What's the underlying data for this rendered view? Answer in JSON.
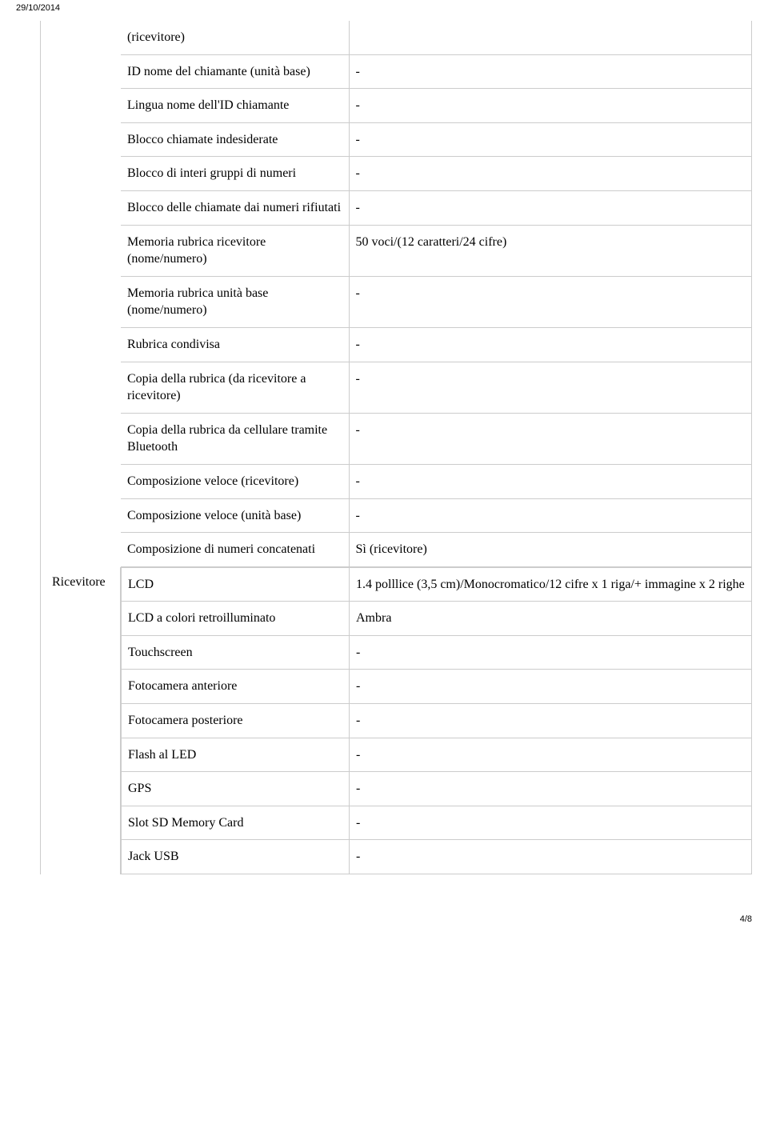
{
  "header": {
    "date": "29/10/2014"
  },
  "section1": {
    "continuation": "(ricevitore)",
    "rows": [
      {
        "label": "ID nome del chiamante (unità base)",
        "value": "-"
      },
      {
        "label": "Lingua nome dell'ID chiamante",
        "value": "-"
      },
      {
        "label": "Blocco chiamate indesiderate",
        "value": "-"
      },
      {
        "label": "Blocco di interi gruppi di numeri",
        "value": "-"
      },
      {
        "label": "Blocco delle chiamate dai numeri rifiutati",
        "value": "-"
      },
      {
        "label": "Memoria rubrica ricevitore (nome/numero)",
        "value": "50 voci/(12 caratteri/24 cifre)"
      },
      {
        "label": "Memoria rubrica unità base (nome/numero)",
        "value": "-"
      },
      {
        "label": "Rubrica condivisa",
        "value": "-"
      },
      {
        "label": "Copia della rubrica (da ricevitore a ricevitore)",
        "value": "-"
      },
      {
        "label": "Copia della rubrica da cellulare tramite Bluetooth",
        "value": "-"
      },
      {
        "label": "Composizione veloce (ricevitore)",
        "value": "-"
      },
      {
        "label": "Composizione veloce (unità base)",
        "value": "-"
      },
      {
        "label": "Composizione di numeri concatenati",
        "value": "Sì (ricevitore)"
      }
    ]
  },
  "section2": {
    "category": "Ricevitore",
    "rows": [
      {
        "label": "LCD",
        "value": "1.4 polllice (3,5 cm)/Monocromatico/12 cifre x 1 riga/+ immagine x 2 righe"
      },
      {
        "label": "LCD a colori retroilluminato",
        "value": "Ambra"
      },
      {
        "label": "Touchscreen",
        "value": "-"
      },
      {
        "label": "Fotocamera anteriore",
        "value": "-"
      },
      {
        "label": "Fotocamera posteriore",
        "value": "-"
      },
      {
        "label": "Flash al LED",
        "value": "-"
      },
      {
        "label": "GPS",
        "value": "-"
      },
      {
        "label": "Slot SD Memory Card",
        "value": "-"
      },
      {
        "label": "Jack USB",
        "value": "-"
      }
    ]
  },
  "footer": {
    "page": "4/8"
  }
}
